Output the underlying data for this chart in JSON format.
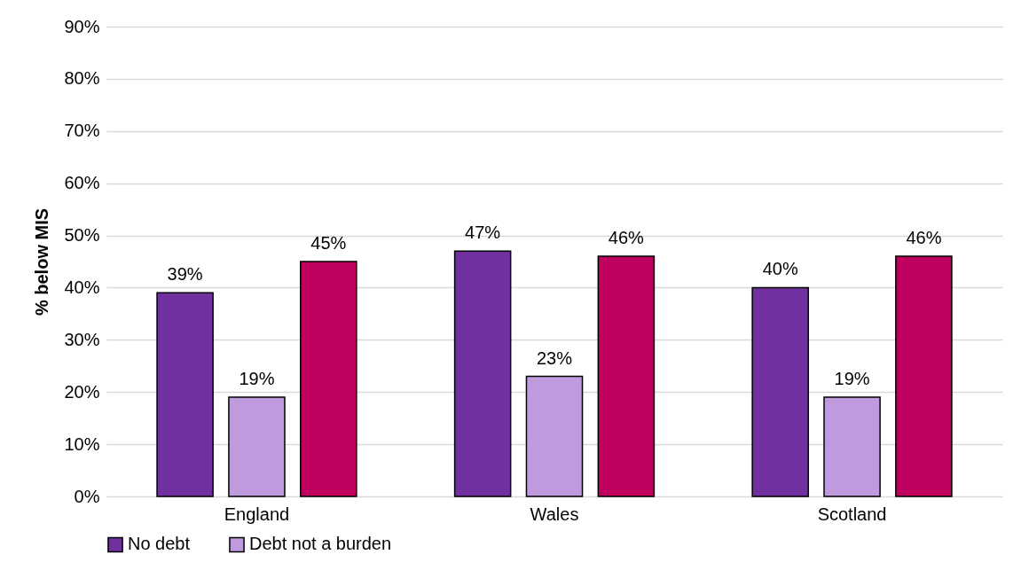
{
  "chart_data": {
    "type": "bar",
    "ylabel": "% below MIS",
    "categories": [
      "England",
      "Wales",
      "Scotland"
    ],
    "series": [
      {
        "name": "No debt",
        "color": "#7030a0",
        "values": [
          39,
          47,
          40
        ],
        "value_labels": [
          "39%",
          "47%",
          "40%"
        ]
      },
      {
        "name": "Debt not a burden",
        "color": "#c09ade",
        "values": [
          19,
          23,
          19
        ],
        "value_labels": [
          "19%",
          "23%",
          "19%"
        ]
      },
      {
        "color": "#bf005f",
        "values": [
          45,
          46,
          46
        ],
        "value_labels": [
          "45%",
          "46%",
          "46%"
        ]
      }
    ],
    "ylim": [
      0,
      90
    ],
    "yticks": [
      {
        "value": 0,
        "label": "0%"
      },
      {
        "value": 10,
        "label": "10%"
      },
      {
        "value": 20,
        "label": "20%"
      },
      {
        "value": 30,
        "label": "30%"
      },
      {
        "value": 40,
        "label": "40%"
      },
      {
        "value": 50,
        "label": "50%"
      },
      {
        "value": 60,
        "label": "60%"
      },
      {
        "value": 70,
        "label": "70%"
      },
      {
        "value": 80,
        "label": "80%"
      },
      {
        "value": 90,
        "label": "90%"
      }
    ],
    "grid": "y",
    "legend": "bottom"
  }
}
